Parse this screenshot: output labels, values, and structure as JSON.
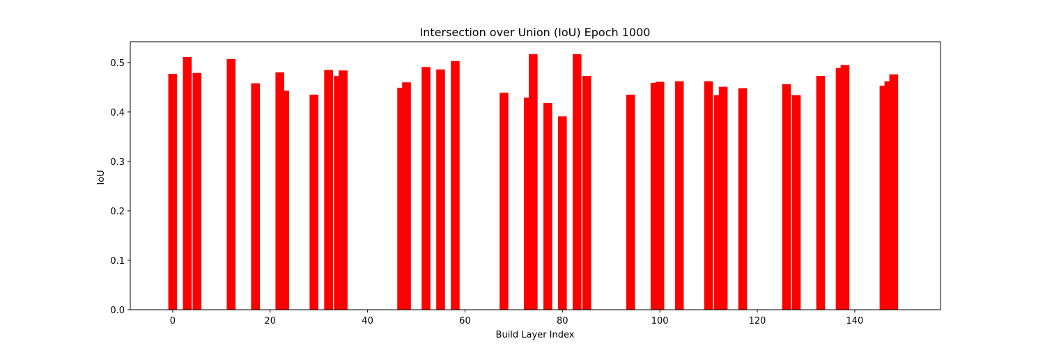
{
  "chart_data": {
    "type": "bar",
    "title": "Intersection over Union (IoU) Epoch 1000",
    "xlabel": "Build Layer Index",
    "ylabel": "IoU",
    "xlim": [
      -8.7,
      157.6
    ],
    "ylim": [
      0,
      0.542
    ],
    "xticks": [
      0,
      20,
      40,
      60,
      80,
      100,
      120,
      140
    ],
    "xtick_labels": [
      "0",
      "20",
      "40",
      "60",
      "80",
      "100",
      "120",
      "140"
    ],
    "yticks": [
      0.0,
      0.1,
      0.2,
      0.3,
      0.4,
      0.5
    ],
    "ytick_labels": [
      "0.0",
      "0.1",
      "0.2",
      "0.3",
      "0.4",
      "0.5"
    ],
    "bar_width": 1.8,
    "color": "#ff0000",
    "grid": false,
    "x": [
      0,
      3,
      5,
      12,
      17,
      22,
      23,
      29,
      32,
      34,
      35,
      47,
      48,
      52,
      55,
      58,
      68,
      73,
      74,
      77,
      80,
      83,
      85,
      94,
      99,
      100,
      104,
      110,
      112,
      113,
      117,
      126,
      128,
      133,
      137,
      138,
      146,
      147,
      148
    ],
    "values": [
      0.477,
      0.511,
      0.479,
      0.507,
      0.458,
      0.48,
      0.443,
      0.435,
      0.485,
      0.473,
      0.484,
      0.449,
      0.46,
      0.491,
      0.486,
      0.503,
      0.439,
      0.429,
      0.517,
      0.418,
      0.391,
      0.517,
      0.473,
      0.435,
      0.459,
      0.461,
      0.462,
      0.462,
      0.434,
      0.451,
      0.448,
      0.456,
      0.434,
      0.473,
      0.489,
      0.495,
      0.453,
      0.462,
      0.476
    ]
  }
}
